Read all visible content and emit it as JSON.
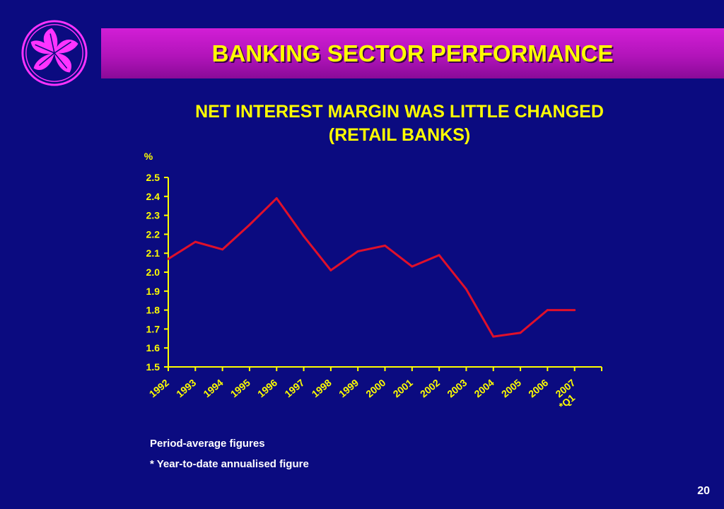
{
  "header": {
    "title": "BANKING SECTOR PERFORMANCE",
    "logo_icon": "bauhinia-flower-icon"
  },
  "colors": {
    "background": "#0b0b80",
    "title_bar": "#c21ac8",
    "title_text": "#ffff00",
    "axis": "#ffff00",
    "line": "#e0102a",
    "logo": "#ff33ff"
  },
  "chart_data": {
    "type": "line",
    "title": "NET INTEREST MARGIN WAS LITTLE CHANGED",
    "subtitle": "(RETAIL BANKS)",
    "ylabel": "%",
    "xlabel": "",
    "ylim": [
      1.5,
      2.5
    ],
    "yticks": [
      "1.5",
      "1.6",
      "1.7",
      "1.8",
      "1.9",
      "2.0",
      "2.1",
      "2.2",
      "2.3",
      "2.4",
      "2.5"
    ],
    "categories": [
      "1992",
      "1993",
      "1994",
      "1995",
      "1996",
      "1997",
      "1998",
      "1999",
      "2000",
      "2001",
      "2002",
      "2003",
      "2004",
      "2005",
      "2006",
      "*Q1 2007"
    ],
    "values": [
      2.07,
      2.16,
      2.12,
      2.25,
      2.39,
      2.19,
      2.01,
      2.11,
      2.14,
      2.03,
      2.09,
      1.91,
      1.66,
      1.68,
      1.8,
      1.8
    ],
    "grid": false,
    "legend": "none"
  },
  "notes": {
    "line1": "Period-average figures",
    "line2": "* Year-to-date annualised figure"
  },
  "page_number": "20"
}
